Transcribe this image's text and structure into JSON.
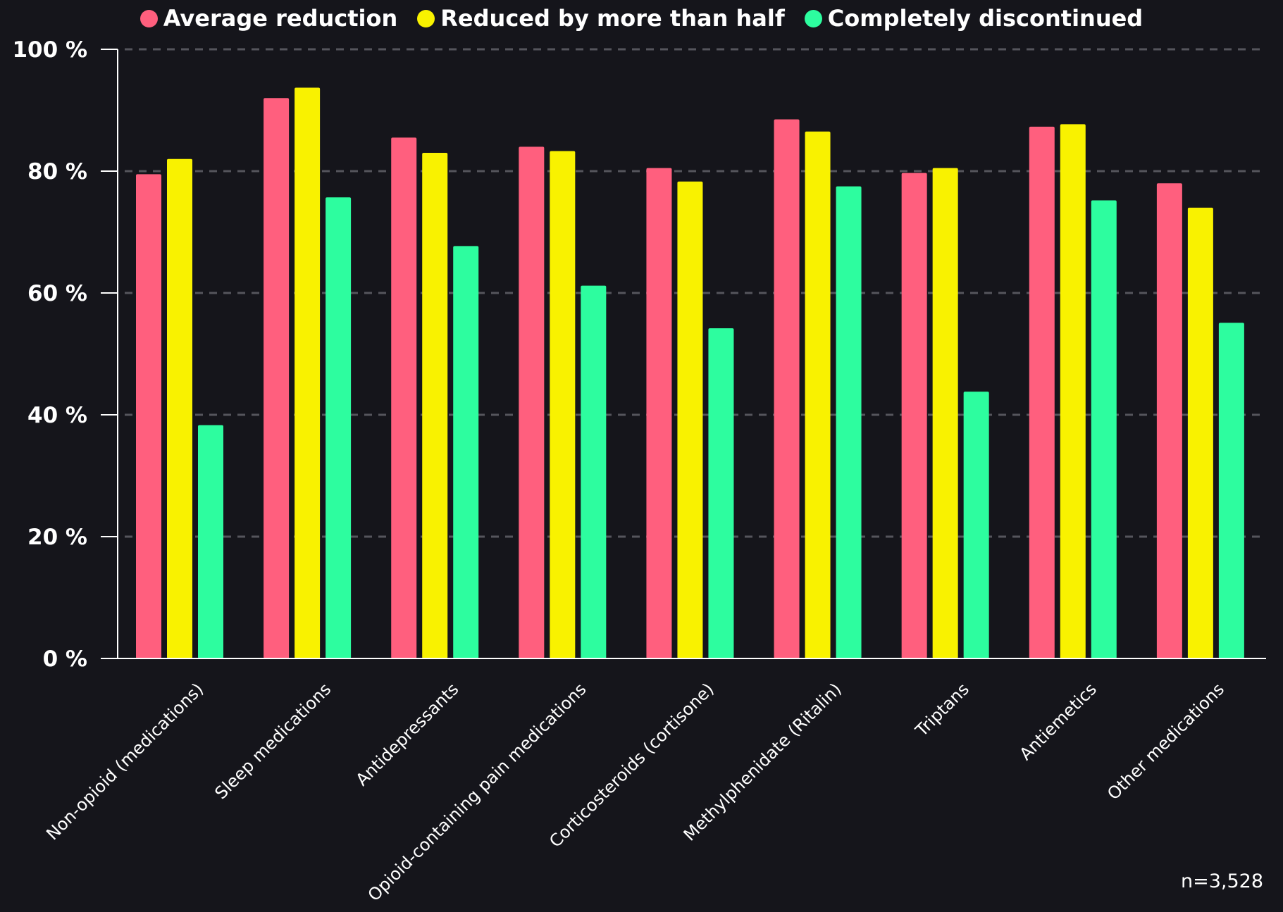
{
  "chart_data": {
    "type": "bar",
    "title": "",
    "xlabel": "",
    "ylabel": "",
    "ylim": [
      0,
      100
    ],
    "yticks": [
      0,
      20,
      40,
      60,
      80,
      100
    ],
    "ytick_labels": [
      "0 %",
      "20 %",
      "40 %",
      "60 %",
      "80 %",
      "100 %"
    ],
    "grid": true,
    "legend_position": "top-center",
    "categories": [
      "Non-opioid (medications)",
      "Sleep medications",
      "Antidepressants",
      "Opioid-containing pain medications",
      "Corticosteroids (cortisone)",
      "Methylphenidate (Ritalin)",
      "Triptans",
      "Antiemetics",
      "Other medications"
    ],
    "series": [
      {
        "name": "Average reduction",
        "color": "#ff5f7e",
        "values": [
          79.5,
          92,
          85.5,
          84,
          80.5,
          88.5,
          79.7,
          87.3,
          78
        ]
      },
      {
        "name": "Reduced by more than half",
        "color": "#f9f200",
        "values": [
          82,
          93.7,
          83,
          83.3,
          78.3,
          86.5,
          80.5,
          87.7,
          74
        ]
      },
      {
        "name": "Completely discontinued",
        "color": "#2dfd9f",
        "values": [
          38.3,
          75.7,
          67.7,
          61.2,
          54.2,
          77.5,
          43.8,
          75.2,
          55.1
        ]
      }
    ],
    "annotation": "n=3,528"
  },
  "style": {
    "background": "#15151b",
    "axis_color": "#ffffff",
    "grid_color": "#55555c",
    "text_color": "#ffffff"
  }
}
